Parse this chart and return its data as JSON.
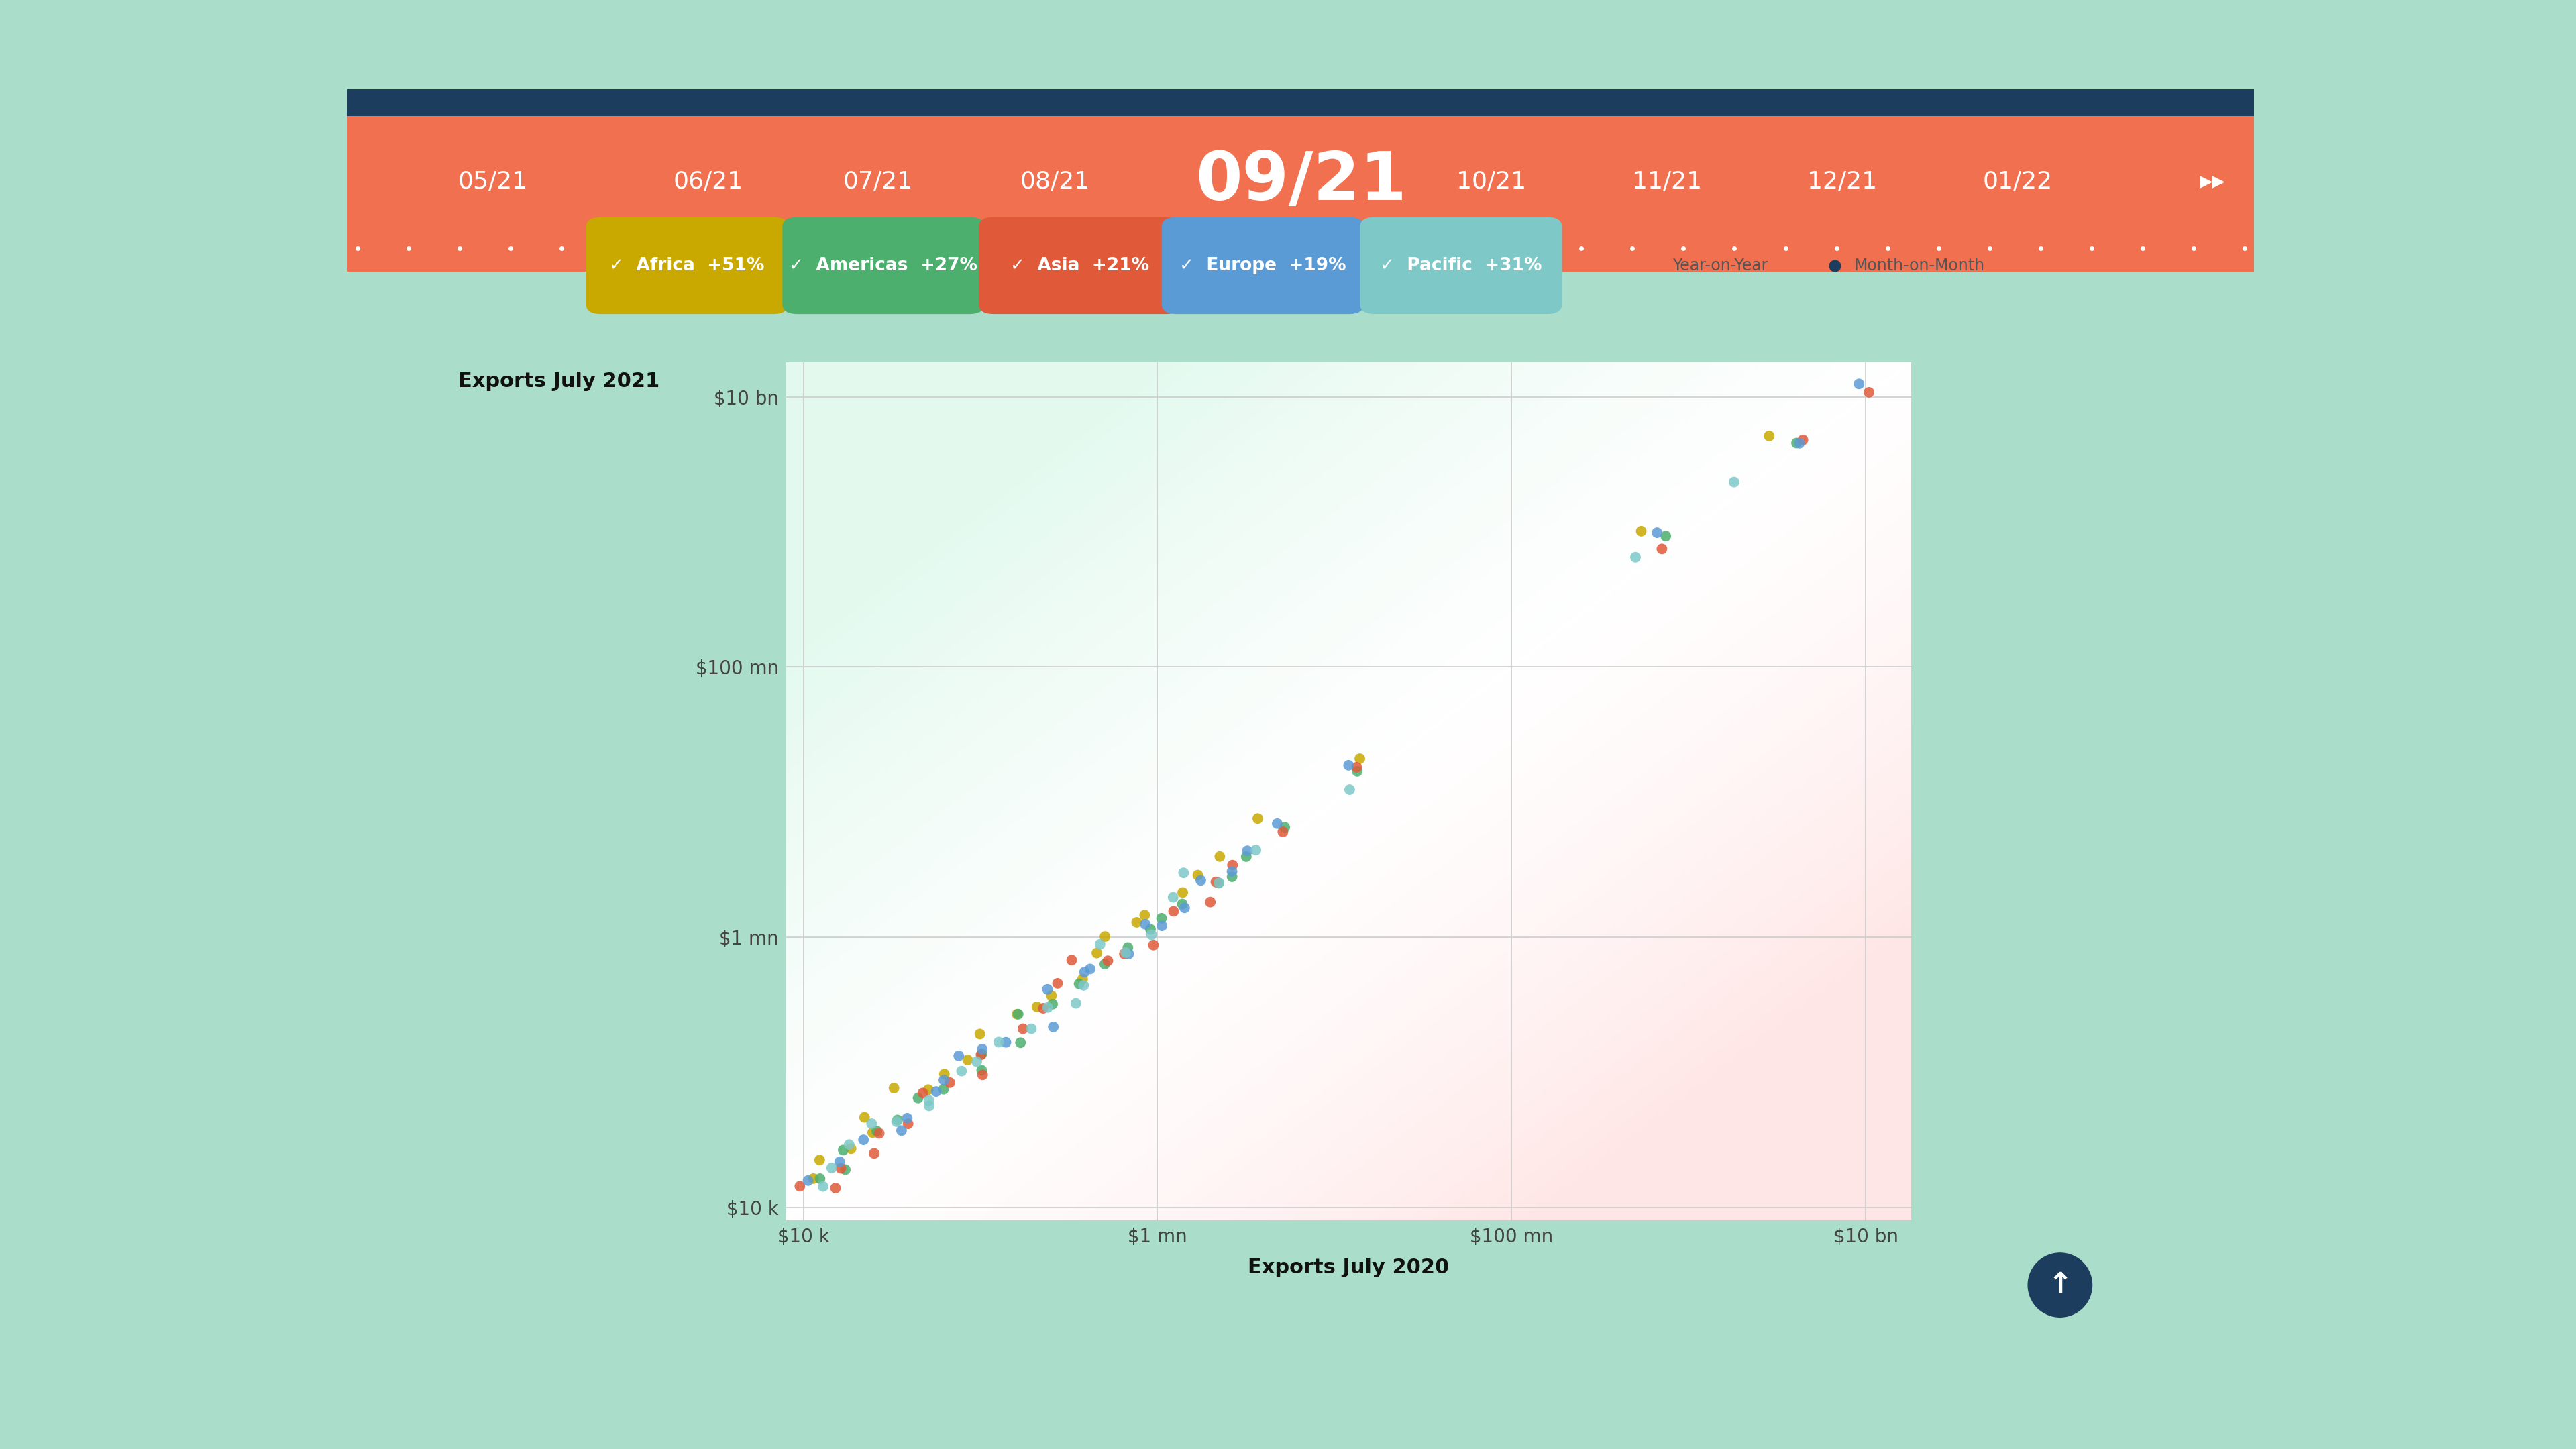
{
  "title_date": "09/21",
  "nav_dates": [
    "05/21",
    "06/21",
    "07/21",
    "08/21",
    "09/21",
    "10/21",
    "11/21",
    "12/21",
    "01/22"
  ],
  "ylabel": "Exports July 2021",
  "xlabel": "Exports July 2020",
  "bg_color": "#aadeca",
  "panel_bg": "#ffffff",
  "header_color": "#f07050",
  "header_dark": "#1c3d5e",
  "continents": [
    {
      "name": "Africa",
      "pct": "+51%",
      "color": "#c9a800"
    },
    {
      "name": "Americas",
      "pct": "+27%",
      "color": "#4caf6e"
    },
    {
      "name": "Asia",
      "pct": "+21%",
      "color": "#e05a3a"
    },
    {
      "name": "Europe",
      "pct": "+19%",
      "color": "#5b9bd5"
    },
    {
      "name": "Pacific",
      "pct": "+31%",
      "color": "#7ec8c8"
    }
  ],
  "tick_labels_x": [
    "$10 k",
    "$1 mn",
    "$100 mn",
    "$10 bn"
  ],
  "tick_labels_y": [
    "$10 k",
    "$1 mn",
    "$100 mn",
    "$10 bn"
  ],
  "tick_vals": [
    10000,
    1000000,
    100000000,
    10000000000
  ],
  "scatter_data": {
    "Africa": {
      "color": "#c9a800",
      "x": [
        11000,
        14000,
        17000,
        22000,
        28000,
        38000,
        50000,
        65000,
        85000,
        110000,
        145000,
        190000,
        250000,
        330000,
        430000,
        560000,
        730000,
        950000,
        1250000,
        1700000,
        2300000,
        4000000,
        12000000,
        550000000,
        3000000000
      ],
      "y": [
        17000,
        21000,
        26000,
        34000,
        44000,
        59000,
        78000,
        103000,
        136000,
        178000,
        235000,
        309000,
        408000,
        540000,
        706000,
        924000,
        1206000,
        1577000,
        2083000,
        2839000,
        3854000,
        6800000,
        20400000,
        935000000,
        5100000000
      ]
    },
    "Americas": {
      "color": "#4caf6e",
      "x": [
        12000,
        16000,
        20000,
        27000,
        36000,
        48000,
        64000,
        85000,
        113000,
        150000,
        200000,
        266000,
        354000,
        470000,
        625000,
        830000,
        1100000,
        1460000,
        2000000,
        2700000,
        3700000,
        6000000,
        15000000,
        700000000,
        4000000000
      ],
      "y": [
        15000,
        20000,
        26000,
        34000,
        46000,
        61000,
        81000,
        108000,
        143000,
        191000,
        254000,
        338000,
        450000,
        597000,
        794000,
        1055000,
        1397000,
        1854000,
        2540000,
        3429000,
        4699000,
        7620000,
        19050000,
        889000000,
        5080000000
      ]
    },
    "Asia": {
      "color": "#e05a3a",
      "x": [
        10000,
        13000,
        17000,
        23000,
        30000,
        40000,
        53000,
        70000,
        93000,
        124000,
        165000,
        220000,
        293000,
        390000,
        520000,
        693000,
        923000,
        1230000,
        1640000,
        2200000,
        3000000,
        5000000,
        13000000,
        600000000,
        4000000000,
        10000000000
      ],
      "y": [
        12000,
        16000,
        21000,
        28000,
        37000,
        49000,
        65000,
        86000,
        114000,
        152000,
        202000,
        269000,
        358000,
        477000,
        636000,
        848000,
        1130000,
        1506000,
        2007000,
        2695000,
        3675000,
        6125000,
        15925000,
        735000000,
        4900000000,
        12250000000
      ]
    },
    "Europe": {
      "color": "#5b9bd5",
      "x": [
        13000,
        17000,
        22000,
        29000,
        38000,
        50000,
        66000,
        87000,
        115000,
        152000,
        200000,
        264000,
        350000,
        464000,
        615000,
        815000,
        1080000,
        1430000,
        1900000,
        2500000,
        3400000,
        5500000,
        14000000,
        650000000,
        3500000000,
        9000000000
      ],
      "y": [
        16000,
        21000,
        27000,
        36000,
        48000,
        63000,
        83000,
        110000,
        145000,
        193000,
        255000,
        337000,
        448000,
        594000,
        788000,
        1045000,
        1385000,
        1836000,
        2438000,
        3211000,
        4366000,
        7063000,
        17990000,
        835000000,
        4495000000,
        11565000000
      ]
    },
    "Pacific": {
      "color": "#7ec8c8",
      "x": [
        10000,
        13000,
        16000,
        21000,
        27000,
        35000,
        46000,
        60000,
        78000,
        101000,
        132000,
        172000,
        225000,
        295000,
        390000,
        515000,
        680000,
        900000,
        1200000,
        1600000,
        2200000,
        3500000,
        9000000,
        400000000,
        2000000000
      ],
      "y": [
        13000,
        17000,
        21000,
        28000,
        36000,
        47000,
        61000,
        80000,
        104000,
        136000,
        178000,
        233000,
        305000,
        400000,
        524000,
        686000,
        897000,
        1188000,
        1584000,
        2112000,
        2904000,
        4620000,
        11880000,
        528000000,
        2640000000
      ]
    }
  }
}
